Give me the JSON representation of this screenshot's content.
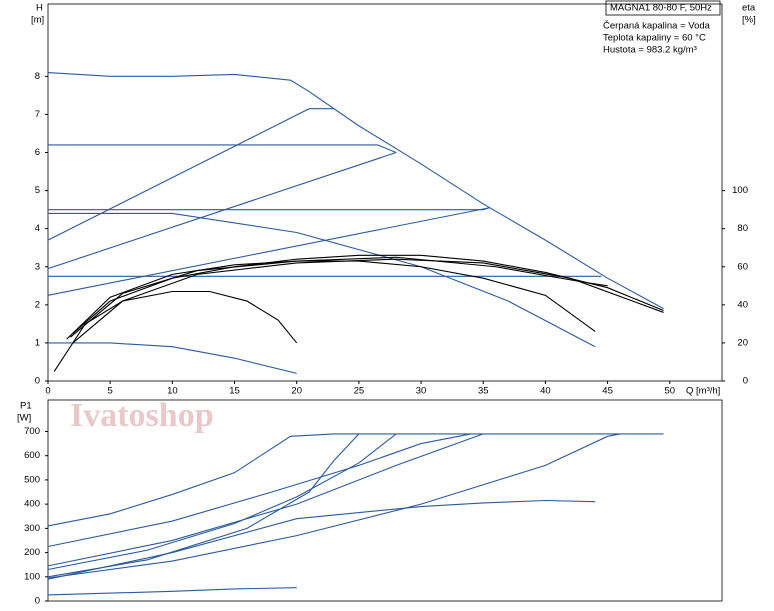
{
  "chart_data": [
    {
      "type": "line",
      "title": "MAGNA1 80-80 F, 50Hz",
      "annotations": [
        "Čerpaná kapalina = Voda",
        "Teplota kapaliny = 60 °C",
        "Hustota = 983.2 kg/m³"
      ],
      "ylabel": [
        "H",
        "[m]"
      ],
      "y2label": [
        "eta",
        "[%]"
      ],
      "xlabel": "Q [m³/h]",
      "xlim": [
        0,
        54.2
      ],
      "xticks": [
        0,
        5,
        10,
        15,
        20,
        25,
        30,
        35,
        40,
        45,
        50
      ],
      "ylim": [
        0,
        9.9
      ],
      "yticks": [
        0,
        1,
        2,
        3,
        4,
        5,
        6,
        7,
        8
      ],
      "y2lim": [
        0,
        198
      ],
      "y2ticks": [
        0,
        20,
        40,
        60,
        80,
        100
      ],
      "series": [
        {
          "color": "#2a5a9e",
          "x": [
            0,
            5,
            10,
            15,
            19.5,
            21,
            25,
            30,
            35,
            40,
            45,
            49.5
          ],
          "values": [
            8.1,
            8.0,
            8.0,
            8.05,
            7.9,
            7.6,
            6.7,
            5.7,
            4.65,
            3.7,
            2.7,
            1.9
          ]
        },
        {
          "color": "#2a5a9e",
          "x": [
            0,
            26.5,
            28
          ],
          "values": [
            6.2,
            6.2,
            6.0
          ]
        },
        {
          "color": "#2a5a9e",
          "x": [
            0,
            35,
            35.5
          ],
          "values": [
            4.5,
            4.5,
            4.55
          ]
        },
        {
          "color": "#2a5a9e",
          "x": [
            0,
            44.5
          ],
          "values": [
            2.75,
            2.75
          ]
        },
        {
          "color": "#2a5a9e",
          "x": [
            0,
            21,
            23
          ],
          "values": [
            3.7,
            7.15,
            7.15
          ]
        },
        {
          "color": "#2a5a9e",
          "x": [
            0,
            28
          ],
          "values": [
            2.95,
            6.0
          ]
        },
        {
          "color": "#2a5a9e",
          "x": [
            0,
            35.5
          ],
          "values": [
            2.25,
            4.55
          ]
        },
        {
          "color": "#2a5a9e",
          "x": [
            0,
            5,
            10,
            15,
            20
          ],
          "values": [
            1.0,
            1.0,
            0.9,
            0.6,
            0.2
          ]
        },
        {
          "color": "#2a5a9e",
          "x": [
            0,
            10,
            20,
            30,
            37,
            44
          ],
          "values": [
            4.4,
            4.4,
            3.9,
            3.0,
            2.1,
            0.9
          ]
        },
        {
          "color": "#000000",
          "axis": "y2",
          "x": [
            0.5,
            3,
            6,
            10,
            13,
            16,
            18.5,
            20
          ],
          "values": [
            5,
            30,
            42,
            47,
            47,
            42,
            32,
            20
          ]
        },
        {
          "color": "#000000",
          "axis": "y2",
          "x": [
            1.5,
            5,
            10,
            15,
            20,
            25,
            30,
            35,
            40,
            44
          ],
          "values": [
            22,
            44,
            56,
            61,
            63,
            63,
            60,
            54,
            45,
            26
          ]
        },
        {
          "color": "#000000",
          "axis": "y2",
          "x": [
            2,
            5,
            10,
            15,
            20,
            25,
            30,
            35,
            40,
            45,
            49.5
          ],
          "values": [
            25,
            42,
            54,
            60,
            64,
            66,
            66,
            63,
            57,
            49,
            37
          ]
        },
        {
          "color": "#000000",
          "axis": "y2",
          "x": [
            1.8,
            6,
            12,
            20,
            28,
            36,
            43,
            45
          ],
          "values": [
            23,
            46,
            58,
            63,
            65,
            60,
            52,
            50
          ]
        },
        {
          "color": "#000000",
          "axis": "y2",
          "x": [
            2,
            6,
            12,
            20,
            28,
            35,
            42,
            49.5
          ],
          "values": [
            20,
            42,
            56,
            62,
            64,
            62,
            54,
            36
          ]
        }
      ]
    },
    {
      "type": "line",
      "ylabel": [
        "P1",
        "[W]"
      ],
      "watermark": "Ivatoshop",
      "xlim": [
        0,
        54.2
      ],
      "ylim": [
        0,
        830
      ],
      "yticks": [
        0,
        100,
        200,
        300,
        400,
        500,
        600,
        700
      ],
      "series": [
        {
          "color": "#2a5a9e",
          "x": [
            0,
            10,
            15,
            20
          ],
          "values": [
            25,
            40,
            50,
            55
          ]
        },
        {
          "color": "#2a5a9e",
          "x": [
            0,
            5,
            10,
            15,
            19.5,
            23,
            49.5
          ],
          "values": [
            310,
            360,
            440,
            530,
            680,
            690,
            690
          ]
        },
        {
          "color": "#2a5a9e",
          "x": [
            0,
            10,
            18,
            25,
            30,
            34
          ],
          "values": [
            225,
            330,
            450,
            560,
            650,
            690
          ]
        },
        {
          "color": "#2a5a9e",
          "x": [
            0,
            10,
            20,
            28,
            35
          ],
          "values": [
            145,
            250,
            400,
            560,
            690
          ]
        },
        {
          "color": "#2a5a9e",
          "x": [
            0,
            10,
            20,
            30,
            40,
            45,
            46
          ],
          "values": [
            95,
            165,
            270,
            400,
            560,
            680,
            690
          ]
        },
        {
          "color": "#2a5a9e",
          "x": [
            0,
            10,
            20,
            30,
            35,
            40,
            44
          ],
          "values": [
            90,
            200,
            340,
            390,
            405,
            415,
            410
          ]
        },
        {
          "color": "#2a5a9e",
          "x": [
            0,
            8,
            15,
            20,
            25,
            28
          ],
          "values": [
            130,
            210,
            320,
            430,
            570,
            690
          ]
        },
        {
          "color": "#2a5a9e",
          "x": [
            0,
            8,
            16,
            21,
            23,
            25
          ],
          "values": [
            100,
            170,
            300,
            450,
            580,
            690
          ]
        }
      ]
    }
  ]
}
